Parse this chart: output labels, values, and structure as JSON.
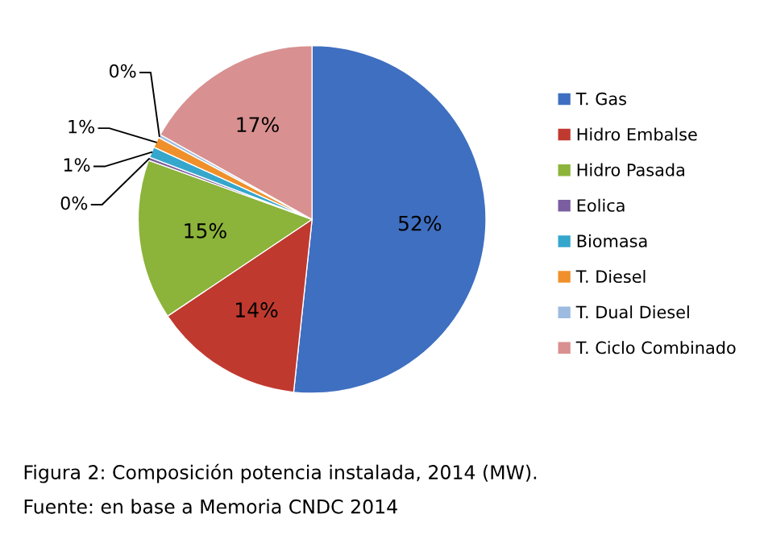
{
  "chart_data": {
    "type": "pie",
    "categories": [
      "T. Gas",
      "Hidro Embalse",
      "Hidro Pasada",
      "Eolica",
      "Biomasa",
      "T. Diesel",
      "T. Dual Diesel",
      "T. Ciclo Combinado"
    ],
    "values": [
      52,
      14,
      15,
      0.3,
      1,
      1,
      0.3,
      17
    ],
    "value_labels": [
      "52%",
      "14%",
      "15%",
      "0%",
      "1%",
      "1%",
      "0%",
      "17%"
    ],
    "colors": [
      "#3f6fc0",
      "#c0392f",
      "#8cb33a",
      "#7a5ea0",
      "#35a6cc",
      "#f0902a",
      "#9dbbe0",
      "#d99090"
    ],
    "legend": "right",
    "annotations": [
      "Figura 2: Composición potencia instalada, 2014 (MW).",
      "Fuente: en base a Memoria CNDC 2014"
    ]
  }
}
